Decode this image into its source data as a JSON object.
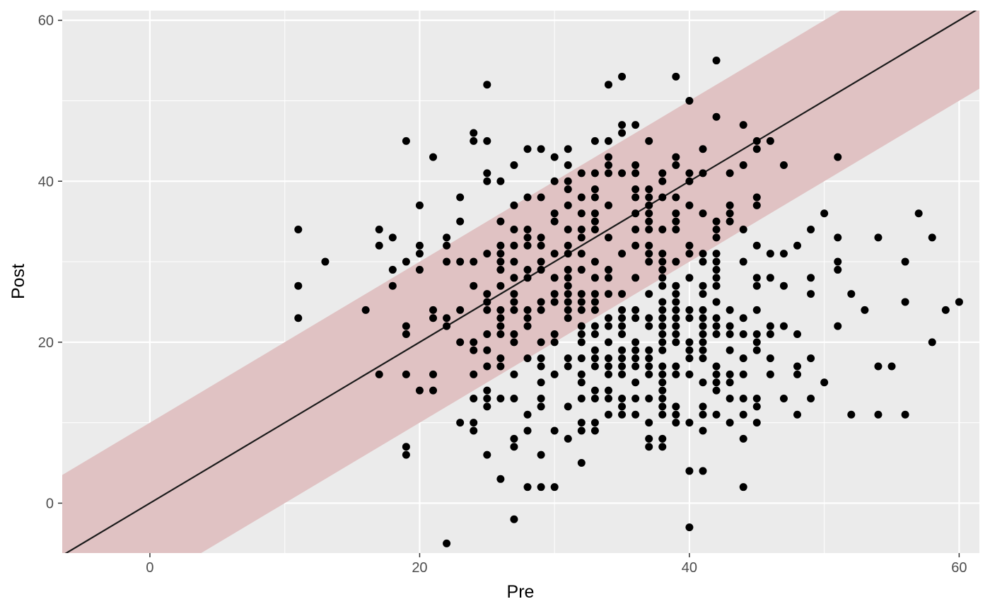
{
  "chart_data": {
    "type": "scatter",
    "title": "",
    "xlabel": "Pre",
    "ylabel": "Post",
    "xlim": [
      -6.5,
      61.5
    ],
    "ylim": [
      -6.2,
      61.2
    ],
    "x_ticks": [
      0,
      20,
      40,
      60
    ],
    "y_ticks": [
      0,
      20,
      40,
      60
    ],
    "x_minor": [
      -10,
      10,
      30,
      50
    ],
    "y_minor": [
      -10,
      10,
      30,
      50
    ],
    "grid": true,
    "background": "#EBEBEB",
    "grid_color": "#FFFFFF",
    "point_color": "#000000",
    "reference_line": {
      "slope": 1,
      "intercept": 0,
      "color": "#1a1a1a"
    },
    "band": {
      "lower_offset": -10,
      "upper_offset": 10,
      "color": "#E0C2C3"
    },
    "points": [
      [
        11,
        34
      ],
      [
        11,
        27
      ],
      [
        11,
        23
      ],
      [
        13,
        30
      ],
      [
        16,
        24
      ],
      [
        17,
        34
      ],
      [
        17,
        32
      ],
      [
        17,
        16
      ],
      [
        18,
        33
      ],
      [
        18,
        29
      ],
      [
        18,
        27
      ],
      [
        19,
        45
      ],
      [
        19,
        30
      ],
      [
        19,
        22
      ],
      [
        19,
        21
      ],
      [
        19,
        16
      ],
      [
        19,
        7
      ],
      [
        19,
        6
      ],
      [
        20,
        37
      ],
      [
        20,
        32
      ],
      [
        20,
        31
      ],
      [
        20,
        29
      ],
      [
        20,
        14
      ],
      [
        21,
        43
      ],
      [
        21,
        24
      ],
      [
        21,
        23
      ],
      [
        21,
        16
      ],
      [
        21,
        14
      ],
      [
        22,
        33
      ],
      [
        22,
        32
      ],
      [
        22,
        30
      ],
      [
        22,
        23
      ],
      [
        22,
        22
      ],
      [
        22,
        -5
      ],
      [
        23,
        38
      ],
      [
        23,
        35
      ],
      [
        23,
        30
      ],
      [
        23,
        24
      ],
      [
        23,
        20
      ],
      [
        23,
        10
      ],
      [
        24,
        46
      ],
      [
        24,
        45
      ],
      [
        24,
        30
      ],
      [
        24,
        27
      ],
      [
        24,
        20
      ],
      [
        24,
        19
      ],
      [
        24,
        16
      ],
      [
        24,
        13
      ],
      [
        24,
        10
      ],
      [
        24,
        9
      ],
      [
        25,
        52
      ],
      [
        25,
        45
      ],
      [
        25,
        41
      ],
      [
        25,
        40
      ],
      [
        25,
        31
      ],
      [
        25,
        26
      ],
      [
        25,
        25
      ],
      [
        25,
        24
      ],
      [
        25,
        21
      ],
      [
        25,
        19
      ],
      [
        25,
        17
      ],
      [
        25,
        14
      ],
      [
        25,
        13
      ],
      [
        25,
        12
      ],
      [
        25,
        6
      ],
      [
        26,
        40
      ],
      [
        26,
        35
      ],
      [
        26,
        32
      ],
      [
        26,
        31
      ],
      [
        26,
        30
      ],
      [
        26,
        29
      ],
      [
        26,
        27
      ],
      [
        26,
        24
      ],
      [
        26,
        23
      ],
      [
        26,
        22
      ],
      [
        26,
        21
      ],
      [
        26,
        18
      ],
      [
        26,
        17
      ],
      [
        26,
        13
      ],
      [
        26,
        3
      ],
      [
        27,
        42
      ],
      [
        27,
        37
      ],
      [
        27,
        34
      ],
      [
        27,
        32
      ],
      [
        27,
        30
      ],
      [
        27,
        28
      ],
      [
        27,
        26
      ],
      [
        27,
        25
      ],
      [
        27,
        24
      ],
      [
        27,
        21
      ],
      [
        27,
        20
      ],
      [
        27,
        16
      ],
      [
        27,
        13
      ],
      [
        27,
        8
      ],
      [
        27,
        7
      ],
      [
        27,
        -2
      ],
      [
        28,
        44
      ],
      [
        28,
        38
      ],
      [
        28,
        34
      ],
      [
        28,
        33
      ],
      [
        28,
        32
      ],
      [
        28,
        29
      ],
      [
        28,
        28
      ],
      [
        28,
        24
      ],
      [
        28,
        23
      ],
      [
        28,
        22
      ],
      [
        28,
        18
      ],
      [
        28,
        11
      ],
      [
        28,
        9
      ],
      [
        28,
        2
      ],
      [
        29,
        44
      ],
      [
        29,
        38
      ],
      [
        29,
        33
      ],
      [
        29,
        32
      ],
      [
        29,
        30
      ],
      [
        29,
        29
      ],
      [
        29,
        25
      ],
      [
        29,
        24
      ],
      [
        29,
        20
      ],
      [
        29,
        18
      ],
      [
        29,
        17
      ],
      [
        29,
        15
      ],
      [
        29,
        13
      ],
      [
        29,
        12
      ],
      [
        29,
        6
      ],
      [
        29,
        2
      ],
      [
        30,
        43
      ],
      [
        30,
        40
      ],
      [
        30,
        36
      ],
      [
        30,
        35
      ],
      [
        30,
        31
      ],
      [
        30,
        28
      ],
      [
        30,
        26
      ],
      [
        30,
        25
      ],
      [
        30,
        21
      ],
      [
        30,
        20
      ],
      [
        30,
        16
      ],
      [
        30,
        9
      ],
      [
        30,
        2
      ],
      [
        31,
        44
      ],
      [
        31,
        42
      ],
      [
        31,
        40
      ],
      [
        31,
        39
      ],
      [
        31,
        37
      ],
      [
        31,
        34
      ],
      [
        31,
        32
      ],
      [
        31,
        31
      ],
      [
        31,
        29
      ],
      [
        31,
        28
      ],
      [
        31,
        27
      ],
      [
        31,
        26
      ],
      [
        31,
        25
      ],
      [
        31,
        24
      ],
      [
        31,
        23
      ],
      [
        31,
        18
      ],
      [
        31,
        17
      ],
      [
        31,
        12
      ],
      [
        31,
        8
      ],
      [
        32,
        41
      ],
      [
        32,
        38
      ],
      [
        32,
        36
      ],
      [
        32,
        34
      ],
      [
        32,
        33
      ],
      [
        32,
        31
      ],
      [
        32,
        29
      ],
      [
        32,
        26
      ],
      [
        32,
        25
      ],
      [
        32,
        24
      ],
      [
        32,
        22
      ],
      [
        32,
        21
      ],
      [
        32,
        20
      ],
      [
        32,
        18
      ],
      [
        32,
        16
      ],
      [
        32,
        15
      ],
      [
        32,
        13
      ],
      [
        32,
        10
      ],
      [
        32,
        9
      ],
      [
        32,
        5
      ],
      [
        33,
        45
      ],
      [
        33,
        41
      ],
      [
        33,
        39
      ],
      [
        33,
        38
      ],
      [
        33,
        36
      ],
      [
        33,
        35
      ],
      [
        33,
        34
      ],
      [
        33,
        30
      ],
      [
        33,
        28
      ],
      [
        33,
        26
      ],
      [
        33,
        25
      ],
      [
        33,
        24
      ],
      [
        33,
        22
      ],
      [
        33,
        21
      ],
      [
        33,
        19
      ],
      [
        33,
        18
      ],
      [
        33,
        17
      ],
      [
        33,
        14
      ],
      [
        33,
        13
      ],
      [
        33,
        10
      ],
      [
        33,
        9
      ],
      [
        34,
        52
      ],
      [
        34,
        45
      ],
      [
        34,
        43
      ],
      [
        34,
        42
      ],
      [
        34,
        41
      ],
      [
        34,
        37
      ],
      [
        34,
        33
      ],
      [
        34,
        29
      ],
      [
        34,
        28
      ],
      [
        34,
        26
      ],
      [
        34,
        23
      ],
      [
        34,
        22
      ],
      [
        34,
        20
      ],
      [
        34,
        18
      ],
      [
        34,
        17
      ],
      [
        34,
        16
      ],
      [
        34,
        14
      ],
      [
        34,
        13
      ],
      [
        34,
        11
      ],
      [
        35,
        53
      ],
      [
        35,
        47
      ],
      [
        35,
        46
      ],
      [
        35,
        41
      ],
      [
        35,
        31
      ],
      [
        35,
        26
      ],
      [
        35,
        24
      ],
      [
        35,
        23
      ],
      [
        35,
        22
      ],
      [
        35,
        21
      ],
      [
        35,
        19
      ],
      [
        35,
        18
      ],
      [
        35,
        17
      ],
      [
        35,
        16
      ],
      [
        35,
        13
      ],
      [
        35,
        12
      ],
      [
        35,
        11
      ],
      [
        36,
        47
      ],
      [
        36,
        42
      ],
      [
        36,
        41
      ],
      [
        36,
        39
      ],
      [
        36,
        38
      ],
      [
        36,
        36
      ],
      [
        36,
        34
      ],
      [
        36,
        32
      ],
      [
        36,
        28
      ],
      [
        36,
        24
      ],
      [
        36,
        23
      ],
      [
        36,
        20
      ],
      [
        36,
        19
      ],
      [
        36,
        18
      ],
      [
        36,
        17
      ],
      [
        36,
        15
      ],
      [
        36,
        13
      ],
      [
        36,
        11
      ],
      [
        37,
        45
      ],
      [
        37,
        39
      ],
      [
        37,
        38
      ],
      [
        37,
        37
      ],
      [
        37,
        36
      ],
      [
        37,
        35
      ],
      [
        37,
        34
      ],
      [
        37,
        32
      ],
      [
        37,
        31
      ],
      [
        37,
        30
      ],
      [
        37,
        26
      ],
      [
        37,
        23
      ],
      [
        37,
        22
      ],
      [
        37,
        19
      ],
      [
        37,
        18
      ],
      [
        37,
        17
      ],
      [
        37,
        16
      ],
      [
        37,
        13
      ],
      [
        37,
        10
      ],
      [
        37,
        8
      ],
      [
        37,
        7
      ],
      [
        38,
        41
      ],
      [
        38,
        40
      ],
      [
        38,
        38
      ],
      [
        38,
        34
      ],
      [
        38,
        31
      ],
      [
        38,
        30
      ],
      [
        38,
        29
      ],
      [
        38,
        28
      ],
      [
        38,
        27
      ],
      [
        38,
        25
      ],
      [
        38,
        24
      ],
      [
        38,
        23
      ],
      [
        38,
        22
      ],
      [
        38,
        21
      ],
      [
        38,
        20
      ],
      [
        38,
        19
      ],
      [
        38,
        17
      ],
      [
        38,
        16
      ],
      [
        38,
        15
      ],
      [
        38,
        14
      ],
      [
        38,
        13
      ],
      [
        38,
        12
      ],
      [
        38,
        11
      ],
      [
        38,
        8
      ],
      [
        38,
        7
      ],
      [
        39,
        53
      ],
      [
        39,
        43
      ],
      [
        39,
        42
      ],
      [
        39,
        38
      ],
      [
        39,
        36
      ],
      [
        39,
        35
      ],
      [
        39,
        34
      ],
      [
        39,
        30
      ],
      [
        39,
        27
      ],
      [
        39,
        26
      ],
      [
        39,
        25
      ],
      [
        39,
        24
      ],
      [
        39,
        23
      ],
      [
        39,
        22
      ],
      [
        39,
        21
      ],
      [
        39,
        20
      ],
      [
        39,
        17
      ],
      [
        39,
        16
      ],
      [
        39,
        12
      ],
      [
        39,
        11
      ],
      [
        39,
        10
      ],
      [
        40,
        50
      ],
      [
        40,
        41
      ],
      [
        40,
        40
      ],
      [
        40,
        37
      ],
      [
        40,
        32
      ],
      [
        40,
        31
      ],
      [
        40,
        28
      ],
      [
        40,
        24
      ],
      [
        40,
        23
      ],
      [
        40,
        20
      ],
      [
        40,
        19
      ],
      [
        40,
        18
      ],
      [
        40,
        16
      ],
      [
        40,
        10
      ],
      [
        40,
        4
      ],
      [
        40,
        -3
      ],
      [
        41,
        44
      ],
      [
        41,
        41
      ],
      [
        41,
        36
      ],
      [
        41,
        31
      ],
      [
        41,
        30
      ],
      [
        41,
        27
      ],
      [
        41,
        26
      ],
      [
        41,
        24
      ],
      [
        41,
        23
      ],
      [
        41,
        22
      ],
      [
        41,
        21
      ],
      [
        41,
        20
      ],
      [
        41,
        19
      ],
      [
        41,
        18
      ],
      [
        41,
        15
      ],
      [
        41,
        12
      ],
      [
        41,
        11
      ],
      [
        41,
        9
      ],
      [
        41,
        4
      ],
      [
        42,
        55
      ],
      [
        42,
        48
      ],
      [
        42,
        35
      ],
      [
        42,
        34
      ],
      [
        42,
        33
      ],
      [
        42,
        31
      ],
      [
        42,
        30
      ],
      [
        42,
        29
      ],
      [
        42,
        28
      ],
      [
        42,
        27
      ],
      [
        42,
        25
      ],
      [
        42,
        23
      ],
      [
        42,
        22
      ],
      [
        42,
        21
      ],
      [
        42,
        17
      ],
      [
        42,
        16
      ],
      [
        42,
        15
      ],
      [
        42,
        14
      ],
      [
        42,
        11
      ],
      [
        43,
        41
      ],
      [
        43,
        37
      ],
      [
        43,
        36
      ],
      [
        43,
        35
      ],
      [
        43,
        24
      ],
      [
        43,
        22
      ],
      [
        43,
        21
      ],
      [
        43,
        19
      ],
      [
        43,
        16
      ],
      [
        43,
        15
      ],
      [
        43,
        13
      ],
      [
        43,
        10
      ],
      [
        44,
        47
      ],
      [
        44,
        42
      ],
      [
        44,
        34
      ],
      [
        44,
        30
      ],
      [
        44,
        23
      ],
      [
        44,
        21
      ],
      [
        44,
        18
      ],
      [
        44,
        16
      ],
      [
        44,
        13
      ],
      [
        44,
        11
      ],
      [
        44,
        8
      ],
      [
        44,
        2
      ],
      [
        45,
        45
      ],
      [
        45,
        44
      ],
      [
        45,
        38
      ],
      [
        45,
        37
      ],
      [
        45,
        32
      ],
      [
        45,
        28
      ],
      [
        45,
        27
      ],
      [
        45,
        24
      ],
      [
        45,
        21
      ],
      [
        45,
        20
      ],
      [
        45,
        19
      ],
      [
        45,
        13
      ],
      [
        45,
        12
      ],
      [
        45,
        10
      ],
      [
        46,
        45
      ],
      [
        46,
        31
      ],
      [
        46,
        28
      ],
      [
        46,
        22
      ],
      [
        46,
        21
      ],
      [
        46,
        18
      ],
      [
        46,
        16
      ],
      [
        47,
        42
      ],
      [
        47,
        31
      ],
      [
        47,
        27
      ],
      [
        47,
        22
      ],
      [
        47,
        13
      ],
      [
        48,
        32
      ],
      [
        48,
        21
      ],
      [
        48,
        17
      ],
      [
        48,
        16
      ],
      [
        48,
        11
      ],
      [
        49,
        34
      ],
      [
        49,
        28
      ],
      [
        49,
        26
      ],
      [
        49,
        18
      ],
      [
        49,
        13
      ],
      [
        50,
        36
      ],
      [
        50,
        15
      ],
      [
        51,
        43
      ],
      [
        51,
        33
      ],
      [
        51,
        30
      ],
      [
        51,
        29
      ],
      [
        51,
        22
      ],
      [
        52,
        26
      ],
      [
        52,
        11
      ],
      [
        53,
        24
      ],
      [
        54,
        33
      ],
      [
        54,
        17
      ],
      [
        54,
        11
      ],
      [
        55,
        17
      ],
      [
        56,
        30
      ],
      [
        56,
        25
      ],
      [
        56,
        11
      ],
      [
        57,
        36
      ],
      [
        58,
        33
      ],
      [
        58,
        20
      ],
      [
        59,
        24
      ],
      [
        60,
        25
      ]
    ]
  }
}
